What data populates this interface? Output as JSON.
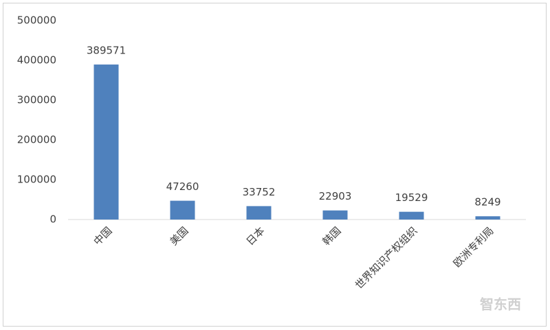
{
  "chart_data": {
    "type": "bar",
    "categories": [
      "中国",
      "美国",
      "日本",
      "韩国",
      "世界知识产权组织",
      "欧洲专利局"
    ],
    "values": [
      389571,
      47260,
      33752,
      22903,
      19529,
      8249
    ],
    "color": "#4f81bd",
    "ylim": [
      0,
      500000
    ],
    "yticks": [
      0,
      100000,
      200000,
      300000,
      400000,
      500000
    ],
    "grid": false,
    "watermark": "智东西"
  }
}
